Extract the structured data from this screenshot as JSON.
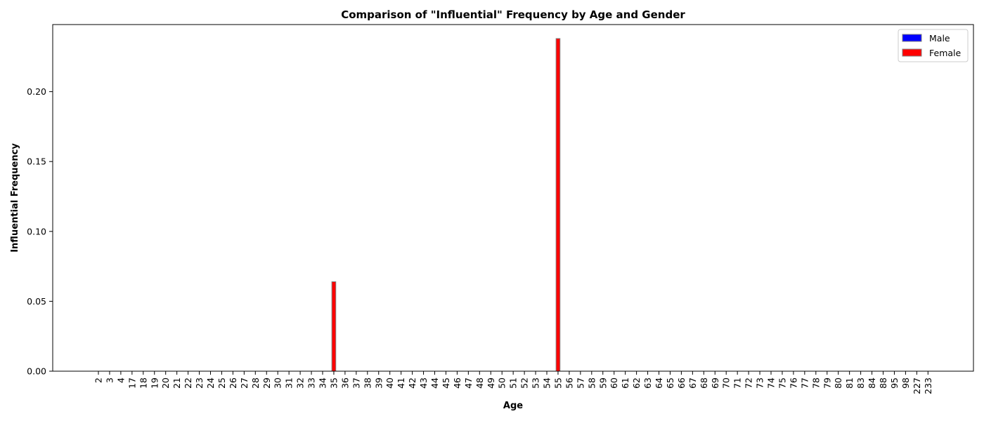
{
  "chart_data": {
    "type": "bar",
    "title": "Comparison of \"Influential\" Frequency by Age and Gender",
    "xlabel": "Age",
    "ylabel": "Influential Frequency",
    "ylim": [
      0,
      0.248
    ],
    "yticks": [
      "0.00",
      "0.05",
      "0.10",
      "0.15",
      "0.20"
    ],
    "ytick_values": [
      0,
      0.05,
      0.1,
      0.15,
      0.2
    ],
    "categories": [
      "2",
      "3",
      "4",
      "17",
      "18",
      "19",
      "20",
      "21",
      "22",
      "23",
      "24",
      "25",
      "26",
      "27",
      "28",
      "29",
      "30",
      "31",
      "32",
      "33",
      "34",
      "35",
      "36",
      "37",
      "38",
      "39",
      "40",
      "41",
      "42",
      "43",
      "44",
      "45",
      "46",
      "47",
      "48",
      "49",
      "50",
      "51",
      "52",
      "53",
      "54",
      "55",
      "56",
      "57",
      "58",
      "59",
      "60",
      "61",
      "62",
      "63",
      "64",
      "65",
      "66",
      "67",
      "68",
      "69",
      "70",
      "71",
      "72",
      "73",
      "74",
      "75",
      "76",
      "77",
      "78",
      "79",
      "80",
      "81",
      "83",
      "84",
      "88",
      "95",
      "98",
      "227",
      "233"
    ],
    "series": [
      {
        "name": "Male",
        "color": "#0000ff",
        "values": [
          0,
          0,
          0,
          0,
          0,
          0,
          0,
          0,
          0,
          0,
          0,
          0,
          0,
          0,
          0,
          0,
          0,
          0,
          0,
          0,
          0,
          0,
          0,
          0,
          0,
          0,
          0,
          0,
          0,
          0,
          0,
          0,
          0,
          0,
          0,
          0,
          0,
          0,
          0,
          0,
          0,
          0,
          0,
          0,
          0,
          0,
          0,
          0,
          0,
          0,
          0,
          0,
          0,
          0,
          0,
          0,
          0,
          0,
          0,
          0,
          0,
          0,
          0,
          0,
          0,
          0,
          0,
          0,
          0,
          0,
          0,
          0,
          0,
          0,
          0
        ]
      },
      {
        "name": "Female",
        "color": "#ff0000",
        "values": [
          0,
          0,
          0,
          0,
          0,
          0,
          0,
          0,
          0,
          0,
          0,
          0,
          0,
          0,
          0,
          0,
          0,
          0,
          0,
          0,
          0,
          0.064,
          0,
          0,
          0,
          0,
          0,
          0,
          0,
          0,
          0,
          0,
          0,
          0,
          0,
          0,
          0,
          0,
          0,
          0,
          0,
          0.238,
          0,
          0,
          0,
          0,
          0,
          0,
          0,
          0,
          0,
          0,
          0,
          0,
          0,
          0,
          0,
          0,
          0,
          0,
          0,
          0,
          0,
          0,
          0,
          0,
          0,
          0,
          0,
          0,
          0,
          0,
          0,
          0,
          0
        ]
      }
    ],
    "legend": "top-right",
    "grid": false,
    "bar_edge_color": "#808080"
  }
}
